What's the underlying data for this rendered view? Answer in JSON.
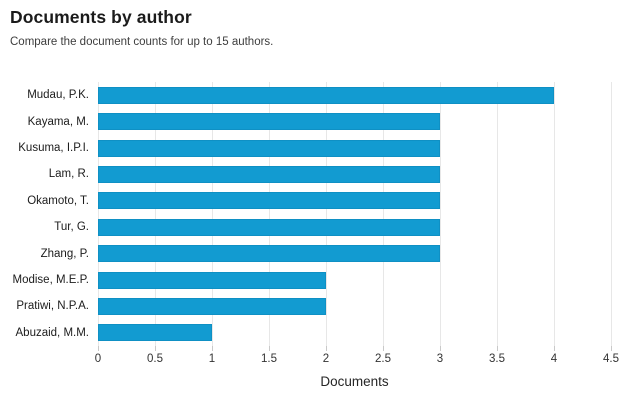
{
  "header": {
    "title": "Documents by author",
    "subtitle": "Compare the document counts for up to 15 authors."
  },
  "chart_data": {
    "type": "bar",
    "orientation": "horizontal",
    "title": "Documents by author",
    "subtitle": "Compare the document counts for up to 15 authors.",
    "categories": [
      "Mudau, P.K.",
      "Kayama, M.",
      "Kusuma, I.P.I.",
      "Lam, R.",
      "Okamoto, T.",
      "Tur, G.",
      "Zhang, P.",
      "Modise, M.E.P.",
      "Pratiwi, N.P.A.",
      "Abuzaid, M.M."
    ],
    "values": [
      4,
      3,
      3,
      3,
      3,
      3,
      3,
      2,
      2,
      1
    ],
    "xlabel": "Documents",
    "ylabel": "",
    "xticks": [
      0,
      0.5,
      1,
      1.5,
      2,
      2.5,
      3,
      3.5,
      4,
      4.5
    ],
    "xlim": [
      0,
      4.5
    ],
    "grid": true,
    "legend": "none",
    "colors": {
      "bar": "#129bd1",
      "gridline": "#e7e7e7",
      "tick": "#c9c9c9",
      "title_text": "#1b1b1b",
      "label_text": "#1c1c1c"
    }
  }
}
